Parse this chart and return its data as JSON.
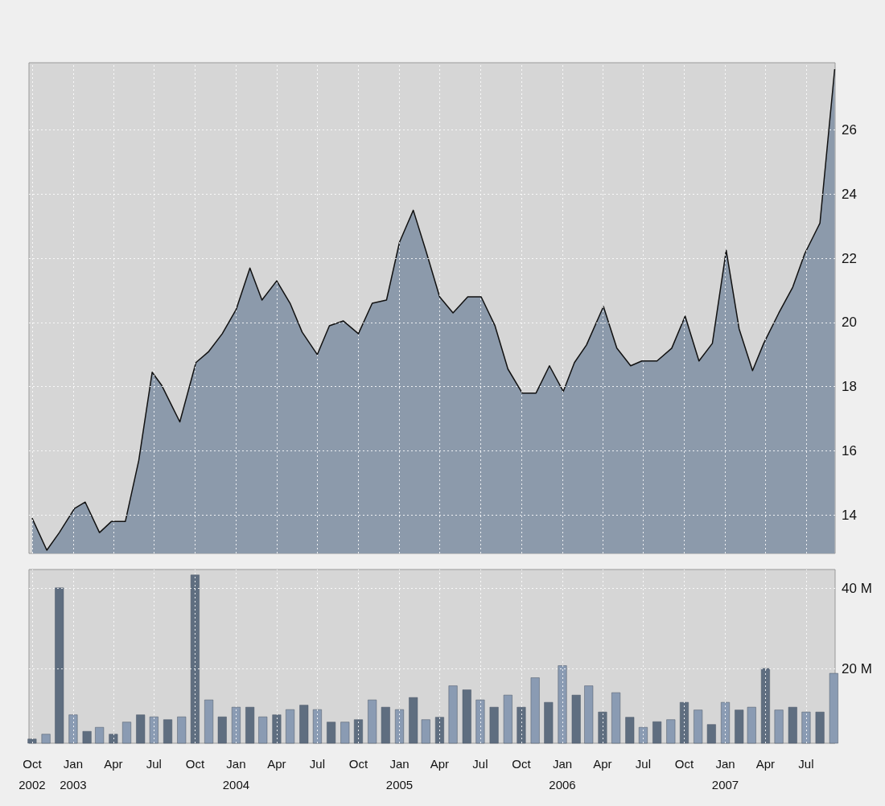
{
  "chart_data": [
    {
      "type": "area",
      "color": "#8c9aab",
      "tick_labels": "y",
      "grid": true,
      "x": [
        "2002-10-01",
        "2002-11-03",
        "2002-12-01",
        "2003-01-04",
        "2003-01-28",
        "2003-03-01",
        "2003-03-28",
        "2003-04-28",
        "2003-05-28",
        "2003-06-27",
        "2003-07-18",
        "2003-08-28",
        "2003-10-03",
        "2003-11-01",
        "2003-12-01",
        "2004-01-01",
        "2004-02-01",
        "2004-02-28",
        "2004-04-01",
        "2004-05-01",
        "2004-05-28",
        "2004-07-01",
        "2004-07-28",
        "2004-08-28",
        "2004-10-01",
        "2004-11-01",
        "2004-12-03",
        "2005-01-01",
        "2005-02-01",
        "2005-03-01",
        "2005-04-01",
        "2005-05-01",
        "2005-06-03",
        "2005-07-03",
        "2005-08-03",
        "2005-09-01",
        "2005-10-03",
        "2005-11-03",
        "2005-12-03",
        "2006-01-03",
        "2006-01-28",
        "2006-02-24",
        "2006-04-03",
        "2006-05-03",
        "2006-06-03",
        "2006-06-28",
        "2006-08-01",
        "2006-09-03",
        "2006-10-03",
        "2006-11-03",
        "2006-12-03",
        "2007-01-03",
        "2007-02-01",
        "2007-03-03",
        "2007-03-28",
        "2007-05-01",
        "2007-06-01",
        "2007-06-28",
        "2007-08-01",
        "2007-09-03"
      ],
      "values": [
        13.9,
        12.9,
        13.45,
        14.2,
        14.4,
        13.45,
        13.8,
        13.8,
        15.7,
        18.45,
        18.05,
        16.9,
        18.75,
        19.1,
        19.65,
        20.4,
        21.7,
        20.7,
        21.3,
        20.6,
        19.7,
        19.0,
        19.9,
        20.05,
        19.65,
        20.6,
        20.7,
        22.5,
        23.5,
        22.25,
        20.8,
        20.3,
        20.8,
        20.8,
        19.9,
        18.55,
        17.8,
        17.8,
        18.65,
        17.85,
        18.75,
        19.3,
        20.5,
        19.2,
        18.65,
        18.8,
        18.8,
        19.2,
        20.2,
        18.8,
        19.35,
        22.25,
        19.8,
        18.5,
        19.35,
        20.3,
        21.1,
        22.15,
        23.1,
        27.9
      ],
      "xlim": [
        "2002-09-24",
        "2007-09-04"
      ],
      "xticks": [
        {
          "value": "2002-10-01",
          "label": null
        },
        {
          "value": "2003-01-01",
          "label": null
        },
        {
          "value": "2003-04-01",
          "label": null
        },
        {
          "value": "2003-07-01",
          "label": null
        },
        {
          "value": "2003-10-01",
          "label": null
        },
        {
          "value": "2004-01-01",
          "label": null
        },
        {
          "value": "2004-04-01",
          "label": null
        },
        {
          "value": "2004-07-01",
          "label": null
        },
        {
          "value": "2004-10-01",
          "label": null
        },
        {
          "value": "2005-01-01",
          "label": null
        },
        {
          "value": "2005-04-01",
          "label": null
        },
        {
          "value": "2005-07-01",
          "label": null
        },
        {
          "value": "2005-10-01",
          "label": null
        },
        {
          "value": "2006-01-01",
          "label": null
        },
        {
          "value": "2006-04-01",
          "label": null
        },
        {
          "value": "2006-07-01",
          "label": null
        },
        {
          "value": "2006-10-01",
          "label": null
        },
        {
          "value": "2007-01-01",
          "label": null
        },
        {
          "value": "2007-04-01",
          "label": null
        },
        {
          "value": "2007-07-01",
          "label": null
        }
      ],
      "ylim": [
        12.8,
        28.1
      ],
      "yticks": [
        14,
        16,
        18,
        20,
        22,
        24,
        26
      ]
    },
    {
      "type": "bar",
      "grid": true,
      "x": [
        "2002-10-01",
        "2002-11-01",
        "2002-12-01",
        "2003-01-01",
        "2003-02-01",
        "2003-03-01",
        "2003-04-01",
        "2003-05-01",
        "2003-06-01",
        "2003-07-01",
        "2003-08-01",
        "2003-09-01",
        "2003-10-01",
        "2003-11-01",
        "2003-12-01",
        "2004-01-01",
        "2004-02-01",
        "2004-03-01",
        "2004-04-01",
        "2004-05-01",
        "2004-06-01",
        "2004-07-01",
        "2004-08-01",
        "2004-09-01",
        "2004-10-01",
        "2004-11-01",
        "2004-12-01",
        "2005-01-01",
        "2005-02-01",
        "2005-03-01",
        "2005-04-01",
        "2005-05-01",
        "2005-06-01",
        "2005-07-01",
        "2005-08-01",
        "2005-09-01",
        "2005-10-01",
        "2005-11-01",
        "2005-12-01",
        "2006-01-01",
        "2006-02-01",
        "2006-03-01",
        "2006-04-01",
        "2006-05-01",
        "2006-06-01",
        "2006-07-01",
        "2006-08-01",
        "2006-09-01",
        "2006-10-01",
        "2006-11-01",
        "2006-12-01",
        "2007-01-01",
        "2007-02-01",
        "2007-03-01",
        "2007-04-01",
        "2007-05-01",
        "2007-06-01",
        "2007-07-01",
        "2007-08-01",
        "2007-09-01"
      ],
      "values": [
        2.6,
        3.8,
        40.1,
        8.6,
        4.5,
        5.5,
        3.8,
        6.8,
        8.6,
        8.1,
        7.4,
        8.1,
        43.3,
        12.3,
        8.1,
        10.5,
        10.5,
        8.1,
        8.6,
        9.9,
        11.0,
        9.9,
        6.8,
        6.8,
        7.4,
        12.3,
        10.5,
        9.9,
        12.9,
        7.4,
        8.0,
        15.8,
        14.8,
        12.3,
        10.5,
        13.5,
        10.5,
        17.8,
        11.7,
        20.8,
        13.5,
        15.8,
        9.3,
        14.1,
        8.0,
        5.5,
        6.9,
        7.4,
        11.7,
        9.8,
        6.2,
        11.7,
        9.8,
        10.5,
        20.1,
        9.8,
        10.5,
        9.3,
        9.3,
        18.9
      ],
      "colors": [
        "#5f6e80",
        "#8a9bb3",
        "#5f6e80",
        "#8a9bb3",
        "#5f6e80",
        "#8a9bb3",
        "#5f6e80",
        "#8a9bb3",
        "#5f6e80",
        "#8a9bb3",
        "#5f6e80",
        "#8a9bb3",
        "#5f6e80",
        "#8a9bb3",
        "#5f6e80",
        "#8a9bb3",
        "#5f6e80",
        "#8a9bb3",
        "#5f6e80",
        "#8a9bb3",
        "#5f6e80",
        "#8a9bb3",
        "#5f6e80",
        "#8a9bb3",
        "#5f6e80",
        "#8a9bb3",
        "#5f6e80",
        "#8a9bb3",
        "#5f6e80",
        "#8a9bb3",
        "#5f6e80",
        "#8a9bb3",
        "#5f6e80",
        "#8a9bb3",
        "#5f6e80",
        "#8a9bb3",
        "#5f6e80",
        "#8a9bb3",
        "#5f6e80",
        "#8a9bb3",
        "#5f6e80",
        "#8a9bb3",
        "#5f6e80",
        "#8a9bb3",
        "#5f6e80",
        "#8a9bb3",
        "#5f6e80",
        "#8a9bb3",
        "#5f6e80",
        "#8a9bb3",
        "#5f6e80",
        "#8a9bb3",
        "#5f6e80",
        "#8a9bb3",
        "#5f6e80",
        "#8a9bb3",
        "#5f6e80",
        "#8a9bb3",
        "#5f6e80",
        "#8a9bb3"
      ],
      "xlim": [
        "2002-09-24",
        "2007-09-04"
      ],
      "xticks": [
        {
          "value": "2002-10-01",
          "label": "Oct\n2002"
        },
        {
          "value": "2003-01-01",
          "label": "Jan\n2003"
        },
        {
          "value": "2003-04-01",
          "label": "Apr"
        },
        {
          "value": "2003-07-01",
          "label": "Jul"
        },
        {
          "value": "2003-10-01",
          "label": "Oct"
        },
        {
          "value": "2004-01-01",
          "label": "Jan\n2004"
        },
        {
          "value": "2004-04-01",
          "label": "Apr"
        },
        {
          "value": "2004-07-01",
          "label": "Jul"
        },
        {
          "value": "2004-10-01",
          "label": "Oct"
        },
        {
          "value": "2005-01-01",
          "label": "Jan\n2005"
        },
        {
          "value": "2005-04-01",
          "label": "Apr"
        },
        {
          "value": "2005-07-01",
          "label": "Jul"
        },
        {
          "value": "2005-10-01",
          "label": "Oct"
        },
        {
          "value": "2006-01-01",
          "label": "Jan\n2006"
        },
        {
          "value": "2006-04-01",
          "label": "Apr"
        },
        {
          "value": "2006-07-01",
          "label": "Jul"
        },
        {
          "value": "2006-10-01",
          "label": "Oct"
        },
        {
          "value": "2007-01-01",
          "label": "Jan\n2007"
        },
        {
          "value": "2007-04-01",
          "label": "Apr"
        },
        {
          "value": "2007-07-01",
          "label": "Jul"
        }
      ],
      "ylim": [
        1.5,
        44.6
      ],
      "yticks": [
        {
          "value": 20,
          "label": "20 M"
        },
        {
          "value": 40,
          "label": "40 M"
        }
      ]
    }
  ]
}
